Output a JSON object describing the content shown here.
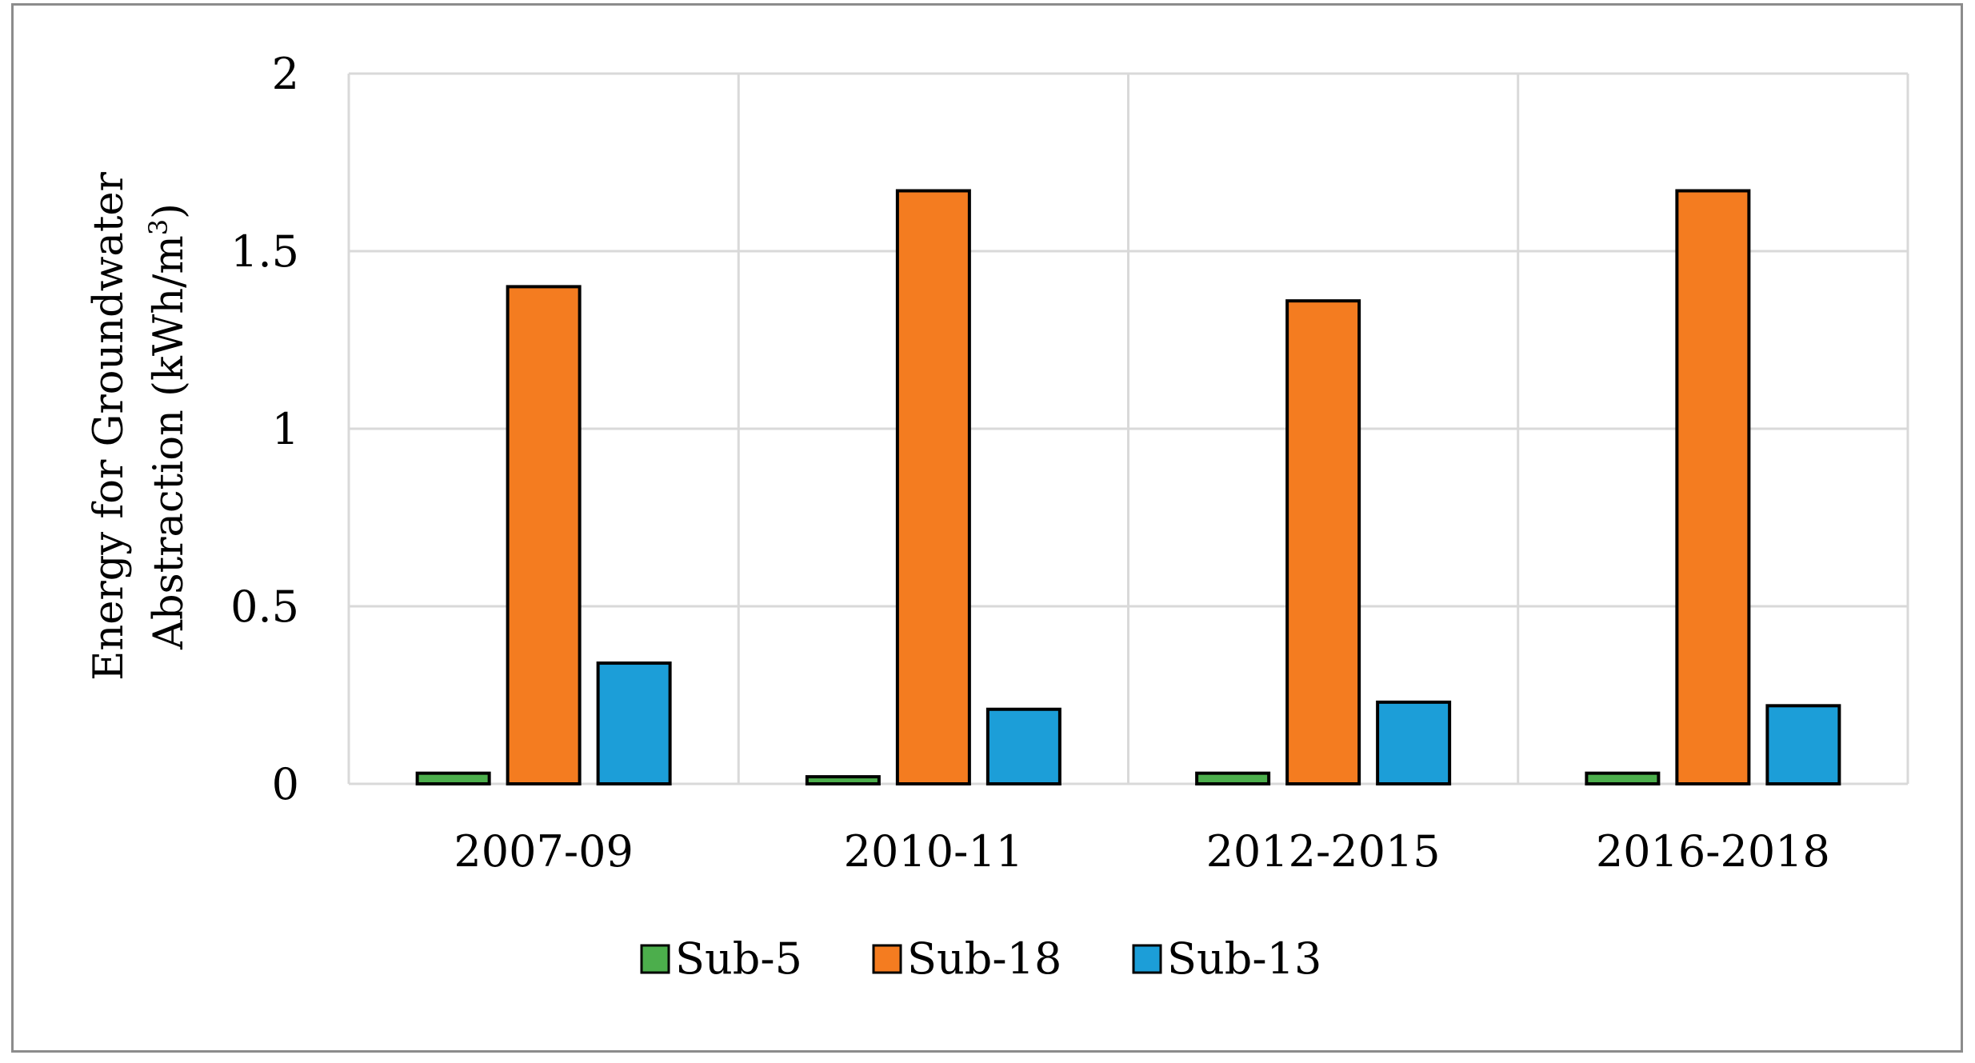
{
  "chart_data": {
    "type": "bar",
    "categories": [
      "2007-09",
      "2010-11",
      "2012-2015",
      "2016-2018"
    ],
    "series": [
      {
        "name": "Sub-5",
        "color": "#4cae4c",
        "values": [
          0.03,
          0.02,
          0.03,
          0.03
        ]
      },
      {
        "name": "Sub-18",
        "color": "#f47c20",
        "values": [
          1.4,
          1.67,
          1.36,
          1.67
        ]
      },
      {
        "name": "Sub-13",
        "color": "#1c9ed8",
        "values": [
          0.34,
          0.21,
          0.23,
          0.22
        ]
      }
    ],
    "ylabel_line1": "Energy for Groundwater",
    "ylabel_line2": "Abstraction (kWh/m",
    "ylabel_superscript": "3",
    "ylabel_close": ")",
    "ylim": [
      0,
      2
    ],
    "yticks": [
      0,
      0.5,
      1,
      1.5,
      2
    ],
    "ytick_labels": [
      "0",
      "0.5",
      "1",
      "1.5",
      "2"
    ],
    "grid": true,
    "legend_position": "bottom"
  }
}
